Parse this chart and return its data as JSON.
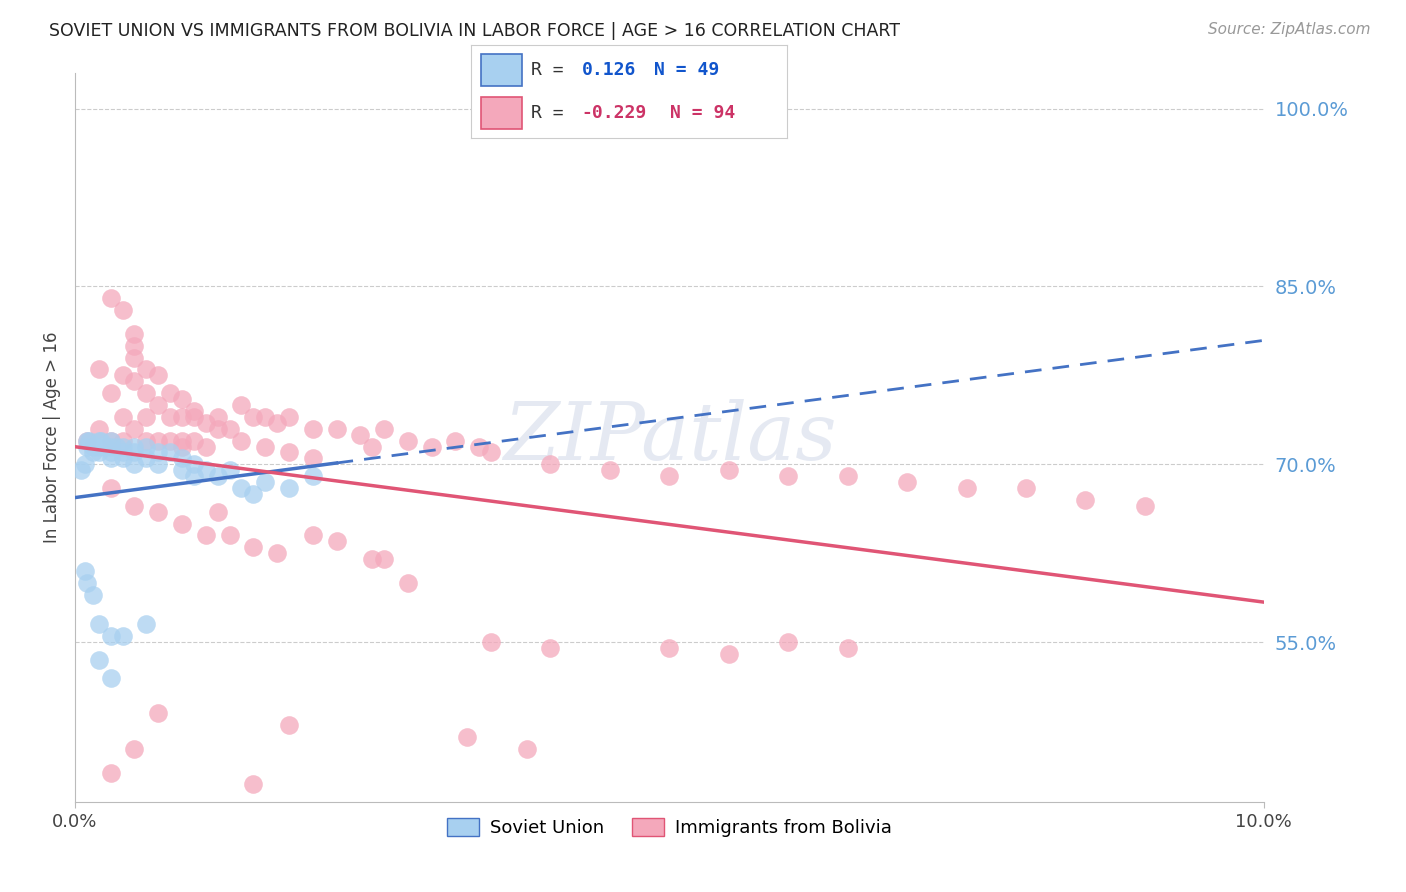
{
  "title": "SOVIET UNION VS IMMIGRANTS FROM BOLIVIA IN LABOR FORCE | AGE > 16 CORRELATION CHART",
  "source": "Source: ZipAtlas.com",
  "ylabel": "In Labor Force | Age > 16",
  "ytick_labels": [
    "55.0%",
    "70.0%",
    "85.0%",
    "100.0%"
  ],
  "ytick_values": [
    0.55,
    0.7,
    0.85,
    1.0
  ],
  "xlim": [
    0.0,
    0.1
  ],
  "ylim": [
    0.415,
    1.03
  ],
  "blue_color": "#a8d0f0",
  "pink_color": "#f4a8bb",
  "blue_line_color": "#4472c4",
  "pink_line_color": "#e05575",
  "watermark_text": "ZIPatlas",
  "blue_R": 0.126,
  "blue_N": 49,
  "pink_R": -0.229,
  "pink_N": 94,
  "blue_scatter_x": [
    0.0005,
    0.0008,
    0.001,
    0.001,
    0.0012,
    0.0015,
    0.0015,
    0.002,
    0.002,
    0.002,
    0.0022,
    0.0025,
    0.003,
    0.003,
    0.003,
    0.003,
    0.0035,
    0.004,
    0.004,
    0.004,
    0.005,
    0.005,
    0.005,
    0.006,
    0.006,
    0.007,
    0.007,
    0.008,
    0.009,
    0.009,
    0.01,
    0.01,
    0.011,
    0.012,
    0.013,
    0.014,
    0.015,
    0.016,
    0.018,
    0.02,
    0.0008,
    0.001,
    0.0015,
    0.002,
    0.003,
    0.004,
    0.006,
    0.002,
    0.003
  ],
  "blue_scatter_y": [
    0.695,
    0.7,
    0.72,
    0.715,
    0.72,
    0.715,
    0.71,
    0.72,
    0.715,
    0.71,
    0.72,
    0.715,
    0.72,
    0.715,
    0.71,
    0.705,
    0.715,
    0.715,
    0.71,
    0.705,
    0.715,
    0.71,
    0.7,
    0.715,
    0.705,
    0.71,
    0.7,
    0.71,
    0.705,
    0.695,
    0.7,
    0.69,
    0.695,
    0.69,
    0.695,
    0.68,
    0.675,
    0.685,
    0.68,
    0.69,
    0.61,
    0.6,
    0.59,
    0.565,
    0.555,
    0.555,
    0.565,
    0.535,
    0.52
  ],
  "pink_scatter_x": [
    0.001,
    0.002,
    0.002,
    0.003,
    0.003,
    0.004,
    0.004,
    0.004,
    0.005,
    0.005,
    0.005,
    0.006,
    0.006,
    0.006,
    0.007,
    0.007,
    0.008,
    0.008,
    0.009,
    0.009,
    0.01,
    0.01,
    0.011,
    0.011,
    0.012,
    0.013,
    0.014,
    0.015,
    0.016,
    0.017,
    0.018,
    0.02,
    0.022,
    0.024,
    0.025,
    0.026,
    0.028,
    0.03,
    0.032,
    0.034,
    0.003,
    0.004,
    0.005,
    0.005,
    0.006,
    0.007,
    0.008,
    0.009,
    0.01,
    0.012,
    0.014,
    0.016,
    0.018,
    0.02,
    0.003,
    0.005,
    0.007,
    0.009,
    0.011,
    0.013,
    0.015,
    0.017,
    0.035,
    0.04,
    0.045,
    0.05,
    0.055,
    0.06,
    0.065,
    0.07,
    0.075,
    0.08,
    0.085,
    0.09,
    0.035,
    0.04,
    0.05,
    0.055,
    0.06,
    0.065,
    0.033,
    0.038,
    0.025,
    0.028,
    0.022,
    0.026,
    0.02,
    0.018,
    0.015,
    0.012,
    0.009,
    0.007,
    0.005,
    0.003
  ],
  "pink_scatter_y": [
    0.72,
    0.78,
    0.73,
    0.76,
    0.72,
    0.775,
    0.74,
    0.72,
    0.81,
    0.77,
    0.73,
    0.76,
    0.74,
    0.72,
    0.75,
    0.72,
    0.74,
    0.72,
    0.74,
    0.715,
    0.74,
    0.72,
    0.735,
    0.715,
    0.74,
    0.73,
    0.75,
    0.74,
    0.74,
    0.735,
    0.74,
    0.73,
    0.73,
    0.725,
    0.715,
    0.73,
    0.72,
    0.715,
    0.72,
    0.715,
    0.84,
    0.83,
    0.8,
    0.79,
    0.78,
    0.775,
    0.76,
    0.755,
    0.745,
    0.73,
    0.72,
    0.715,
    0.71,
    0.705,
    0.68,
    0.665,
    0.66,
    0.65,
    0.64,
    0.64,
    0.63,
    0.625,
    0.71,
    0.7,
    0.695,
    0.69,
    0.695,
    0.69,
    0.69,
    0.685,
    0.68,
    0.68,
    0.67,
    0.665,
    0.55,
    0.545,
    0.545,
    0.54,
    0.55,
    0.545,
    0.47,
    0.46,
    0.62,
    0.6,
    0.635,
    0.62,
    0.64,
    0.48,
    0.43,
    0.66,
    0.72,
    0.49,
    0.46,
    0.44
  ]
}
